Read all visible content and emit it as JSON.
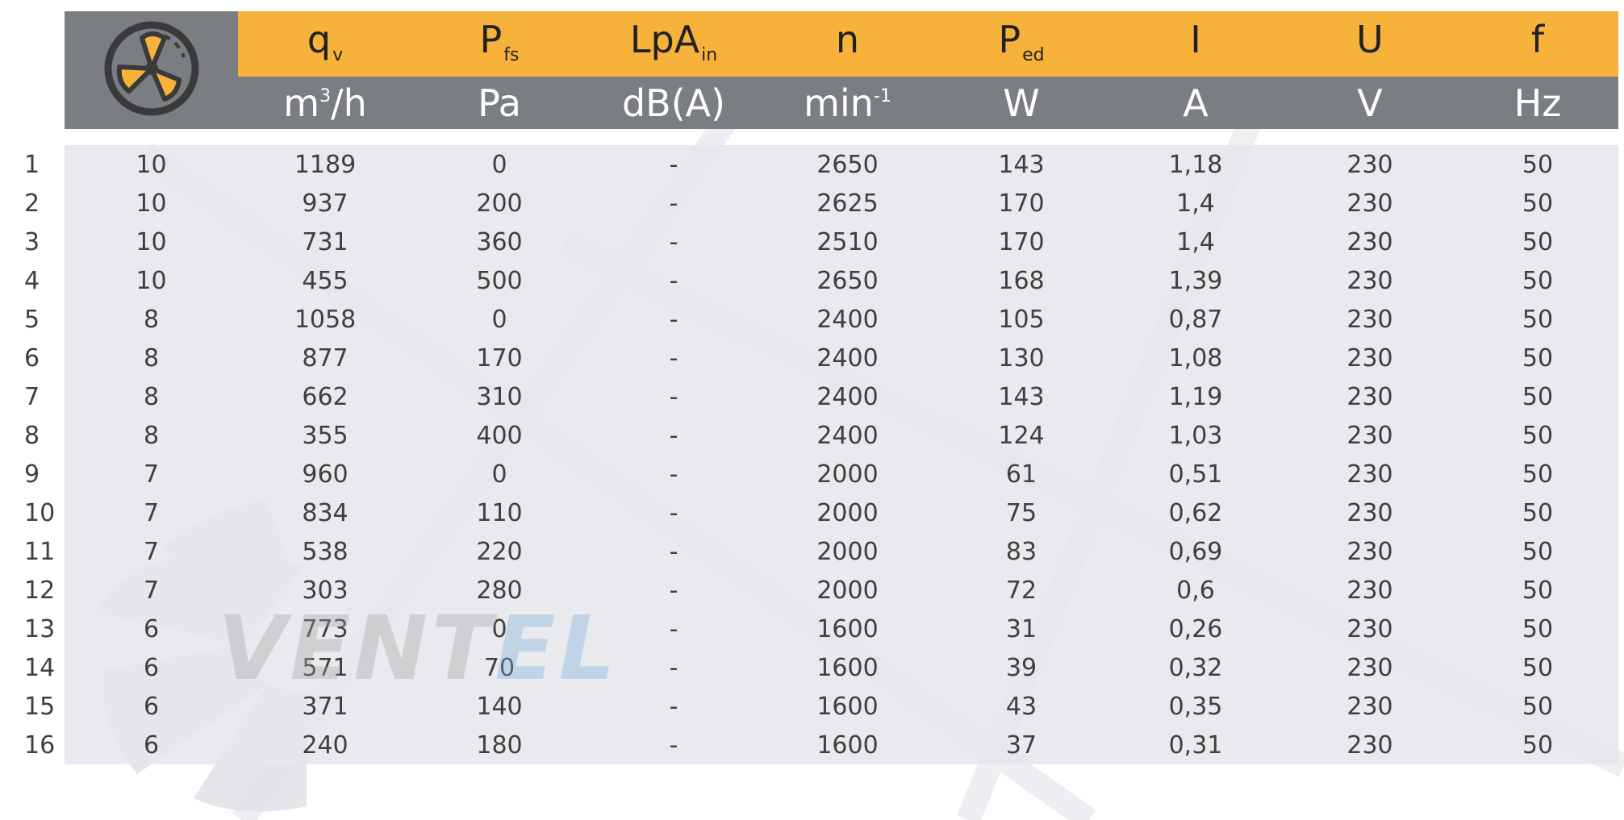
{
  "header": {
    "icon": "fan-icon",
    "columns": [
      {
        "symbol": "q",
        "sub": "v",
        "unit": "m",
        "unit_sup": "3",
        "unit_tail": "/h"
      },
      {
        "symbol": "P",
        "sub": "fs",
        "unit": "Pa",
        "unit_sup": "",
        "unit_tail": ""
      },
      {
        "symbol": "LpA",
        "sub": "in",
        "unit": "dB(A)",
        "unit_sup": "",
        "unit_tail": ""
      },
      {
        "symbol": "n",
        "sub": "",
        "unit": "min",
        "unit_sup": "-1",
        "unit_tail": ""
      },
      {
        "symbol": "P",
        "sub": "ed",
        "unit": "W",
        "unit_sup": "",
        "unit_tail": ""
      },
      {
        "symbol": "I",
        "sub": "",
        "unit": "A",
        "unit_sup": "",
        "unit_tail": ""
      },
      {
        "symbol": "U",
        "sub": "",
        "unit": "V",
        "unit_sup": "",
        "unit_tail": ""
      },
      {
        "symbol": "f",
        "sub": "",
        "unit": "Hz",
        "unit_sup": "",
        "unit_tail": ""
      }
    ]
  },
  "rows": [
    {
      "no": "1",
      "speed": "10",
      "qv": "1189",
      "pfs": "0",
      "lpa": "-",
      "n": "2650",
      "ped": "143",
      "i": "1,18",
      "u": "230",
      "f": "50"
    },
    {
      "no": "2",
      "speed": "10",
      "qv": "937",
      "pfs": "200",
      "lpa": "-",
      "n": "2625",
      "ped": "170",
      "i": "1,4",
      "u": "230",
      "f": "50"
    },
    {
      "no": "3",
      "speed": "10",
      "qv": "731",
      "pfs": "360",
      "lpa": "-",
      "n": "2510",
      "ped": "170",
      "i": "1,4",
      "u": "230",
      "f": "50"
    },
    {
      "no": "4",
      "speed": "10",
      "qv": "455",
      "pfs": "500",
      "lpa": "-",
      "n": "2650",
      "ped": "168",
      "i": "1,39",
      "u": "230",
      "f": "50"
    },
    {
      "no": "5",
      "speed": "8",
      "qv": "1058",
      "pfs": "0",
      "lpa": "-",
      "n": "2400",
      "ped": "105",
      "i": "0,87",
      "u": "230",
      "f": "50"
    },
    {
      "no": "6",
      "speed": "8",
      "qv": "877",
      "pfs": "170",
      "lpa": "-",
      "n": "2400",
      "ped": "130",
      "i": "1,08",
      "u": "230",
      "f": "50"
    },
    {
      "no": "7",
      "speed": "8",
      "qv": "662",
      "pfs": "310",
      "lpa": "-",
      "n": "2400",
      "ped": "143",
      "i": "1,19",
      "u": "230",
      "f": "50"
    },
    {
      "no": "8",
      "speed": "8",
      "qv": "355",
      "pfs": "400",
      "lpa": "-",
      "n": "2400",
      "ped": "124",
      "i": "1,03",
      "u": "230",
      "f": "50"
    },
    {
      "no": "9",
      "speed": "7",
      "qv": "960",
      "pfs": "0",
      "lpa": "-",
      "n": "2000",
      "ped": "61",
      "i": "0,51",
      "u": "230",
      "f": "50"
    },
    {
      "no": "10",
      "speed": "7",
      "qv": "834",
      "pfs": "110",
      "lpa": "-",
      "n": "2000",
      "ped": "75",
      "i": "0,62",
      "u": "230",
      "f": "50"
    },
    {
      "no": "11",
      "speed": "7",
      "qv": "538",
      "pfs": "220",
      "lpa": "-",
      "n": "2000",
      "ped": "83",
      "i": "0,69",
      "u": "230",
      "f": "50"
    },
    {
      "no": "12",
      "speed": "7",
      "qv": "303",
      "pfs": "280",
      "lpa": "-",
      "n": "2000",
      "ped": "72",
      "i": "0,6",
      "u": "230",
      "f": "50"
    },
    {
      "no": "13",
      "speed": "6",
      "qv": "773",
      "pfs": "0",
      "lpa": "-",
      "n": "1600",
      "ped": "31",
      "i": "0,26",
      "u": "230",
      "f": "50"
    },
    {
      "no": "14",
      "speed": "6",
      "qv": "571",
      "pfs": "70",
      "lpa": "-",
      "n": "1600",
      "ped": "39",
      "i": "0,32",
      "u": "230",
      "f": "50"
    },
    {
      "no": "15",
      "speed": "6",
      "qv": "371",
      "pfs": "140",
      "lpa": "-",
      "n": "1600",
      "ped": "43",
      "i": "0,35",
      "u": "230",
      "f": "50"
    },
    {
      "no": "16",
      "speed": "6",
      "qv": "240",
      "pfs": "180",
      "lpa": "-",
      "n": "1600",
      "ped": "37",
      "i": "0,31",
      "u": "230",
      "f": "50"
    }
  ],
  "watermark": {
    "part_a": "VENT",
    "part_b": "EL"
  },
  "colors": {
    "accent": "#f7b23b",
    "header_gray": "#7a7d82",
    "cell_bg": "#e5e7ea"
  }
}
